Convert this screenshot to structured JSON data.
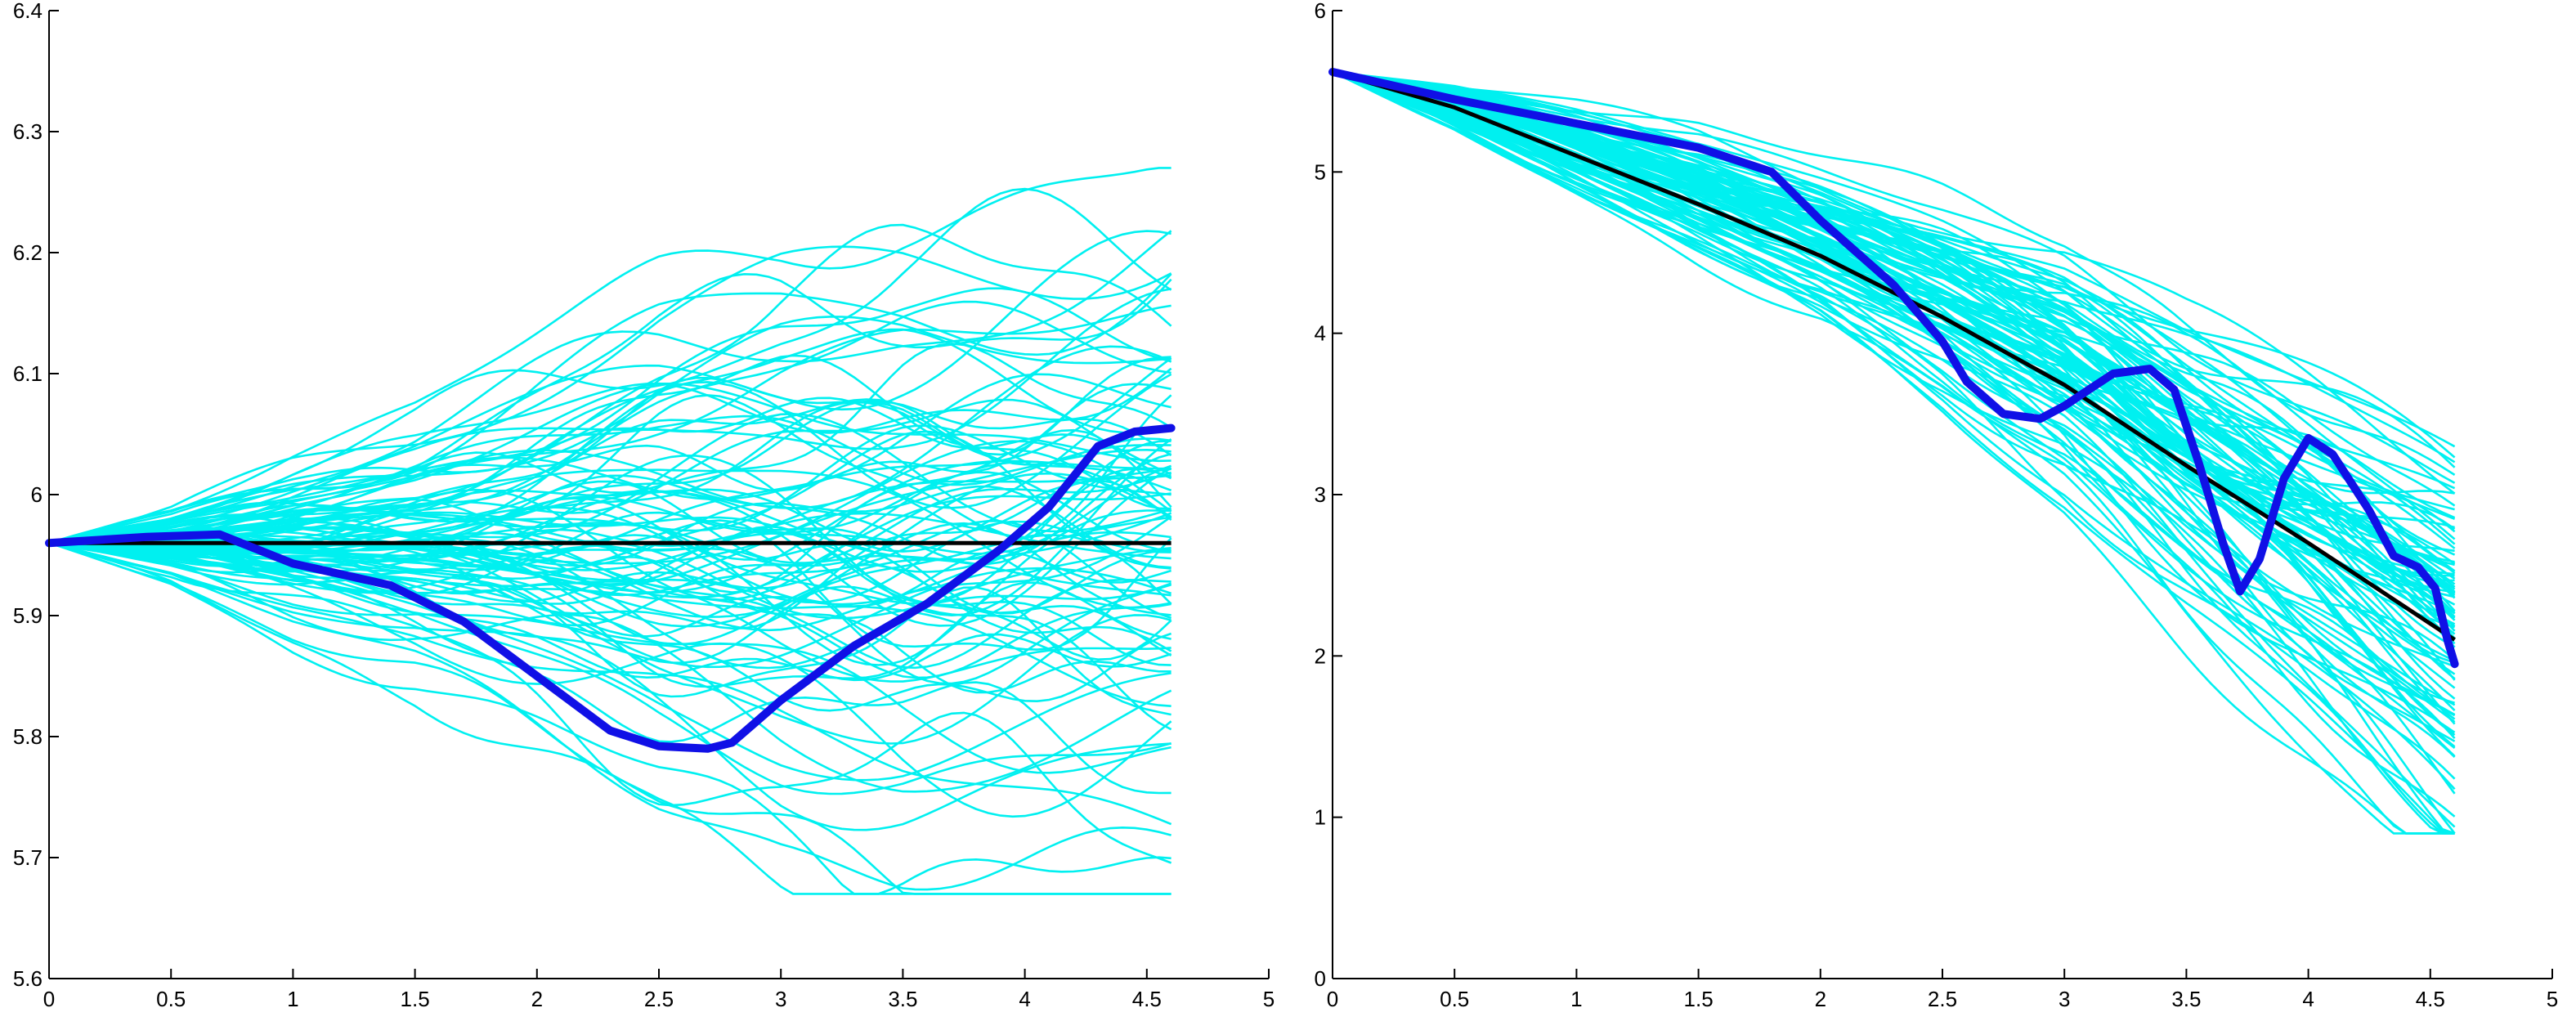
{
  "colors": {
    "sample_paths": "#00f0f0",
    "highlight_path": "#1010e6",
    "mean_path": "#000000",
    "axes": "#000000",
    "background": "#ffffff"
  },
  "chart_data": [
    {
      "type": "line",
      "title": "",
      "xlabel": "",
      "ylabel": "",
      "xlim": [
        0,
        5
      ],
      "ylim": [
        5.6,
        6.4
      ],
      "xticks": [
        "0",
        "0.5",
        "1",
        "1.5",
        "2",
        "2.5",
        "3",
        "3.5",
        "4",
        "4.5",
        "5"
      ],
      "yticks": [
        "5.6",
        "5.7",
        "5.8",
        "5.9",
        "6",
        "6.1",
        "6.2",
        "6.3",
        "6.4"
      ],
      "grid": false,
      "legend": "none",
      "sample_paths": {
        "count": 100,
        "x_end": 4.6,
        "start": 5.96,
        "mean": [
          [
            0,
            5.96
          ],
          [
            4.6,
            5.96
          ]
        ],
        "spread": [
          [
            0,
            0
          ],
          [
            0.5,
            0.012
          ],
          [
            1,
            0.03
          ],
          [
            1.5,
            0.045
          ],
          [
            2,
            0.065
          ],
          [
            2.5,
            0.085
          ],
          [
            3,
            0.1
          ],
          [
            3.5,
            0.11
          ],
          [
            4,
            0.115
          ],
          [
            4.6,
            0.12
          ]
        ],
        "envelope_min": 5.67,
        "envelope_max": 6.27
      },
      "mean_path": [
        [
          0,
          5.96
        ],
        [
          4.6,
          5.96
        ]
      ],
      "highlight_path": [
        [
          0,
          5.96
        ],
        [
          0.4,
          5.965
        ],
        [
          0.7,
          5.967
        ],
        [
          1,
          5.943
        ],
        [
          1.4,
          5.925
        ],
        [
          1.7,
          5.895
        ],
        [
          2,
          5.85
        ],
        [
          2.3,
          5.805
        ],
        [
          2.5,
          5.792
        ],
        [
          2.7,
          5.79
        ],
        [
          2.8,
          5.795
        ],
        [
          3,
          5.83
        ],
        [
          3.3,
          5.875
        ],
        [
          3.6,
          5.91
        ],
        [
          3.9,
          5.955
        ],
        [
          4.1,
          5.99
        ],
        [
          4.3,
          6.04
        ],
        [
          4.45,
          6.052
        ],
        [
          4.6,
          6.055
        ]
      ]
    },
    {
      "type": "line",
      "title": "",
      "xlabel": "",
      "ylabel": "",
      "xlim": [
        0,
        5
      ],
      "ylim": [
        0,
        6
      ],
      "xticks": [
        "0",
        "0.5",
        "1",
        "1.5",
        "2",
        "2.5",
        "3",
        "3.5",
        "4",
        "4.5",
        "5"
      ],
      "yticks": [
        "0",
        "1",
        "2",
        "3",
        "4",
        "5",
        "6"
      ],
      "grid": false,
      "legend": "none",
      "sample_paths": {
        "count": 100,
        "x_end": 4.6,
        "start": 5.62,
        "mean": [
          [
            0,
            5.62
          ],
          [
            0.5,
            5.42
          ],
          [
            1,
            5.17
          ],
          [
            1.5,
            4.9
          ],
          [
            2,
            4.6
          ],
          [
            2.5,
            4.25
          ],
          [
            3,
            3.85
          ],
          [
            3.5,
            3.3
          ],
          [
            4,
            2.8
          ],
          [
            4.6,
            2.2
          ]
        ],
        "spread": [
          [
            0,
            0
          ],
          [
            0.5,
            0.06
          ],
          [
            1,
            0.12
          ],
          [
            1.5,
            0.18
          ],
          [
            2,
            0.22
          ],
          [
            2.5,
            0.28
          ],
          [
            3,
            0.35
          ],
          [
            3.5,
            0.42
          ],
          [
            4,
            0.5
          ],
          [
            4.6,
            0.6
          ]
        ],
        "envelope_min": 0.9,
        "envelope_max": 5.62
      },
      "mean_path": [
        [
          0,
          5.62
        ],
        [
          0.5,
          5.4
        ],
        [
          1,
          5.1
        ],
        [
          1.5,
          4.8
        ],
        [
          2,
          4.48
        ],
        [
          2.5,
          4.1
        ],
        [
          3,
          3.68
        ],
        [
          3.5,
          3.18
        ],
        [
          4,
          2.7
        ],
        [
          4.6,
          2.1
        ]
      ],
      "highlight_path": [
        [
          0,
          5.62
        ],
        [
          0.5,
          5.45
        ],
        [
          1,
          5.3
        ],
        [
          1.5,
          5.15
        ],
        [
          1.8,
          5
        ],
        [
          2,
          4.7
        ],
        [
          2.3,
          4.3
        ],
        [
          2.5,
          3.95
        ],
        [
          2.6,
          3.7
        ],
        [
          2.75,
          3.5
        ],
        [
          2.9,
          3.47
        ],
        [
          3,
          3.55
        ],
        [
          3.1,
          3.65
        ],
        [
          3.2,
          3.75
        ],
        [
          3.35,
          3.78
        ],
        [
          3.45,
          3.65
        ],
        [
          3.55,
          3.2
        ],
        [
          3.65,
          2.7
        ],
        [
          3.72,
          2.4
        ],
        [
          3.8,
          2.6
        ],
        [
          3.9,
          3.1
        ],
        [
          4,
          3.35
        ],
        [
          4.1,
          3.25
        ],
        [
          4.25,
          2.9
        ],
        [
          4.35,
          2.62
        ],
        [
          4.45,
          2.55
        ],
        [
          4.52,
          2.42
        ],
        [
          4.57,
          2.1
        ],
        [
          4.6,
          1.95
        ]
      ]
    }
  ]
}
